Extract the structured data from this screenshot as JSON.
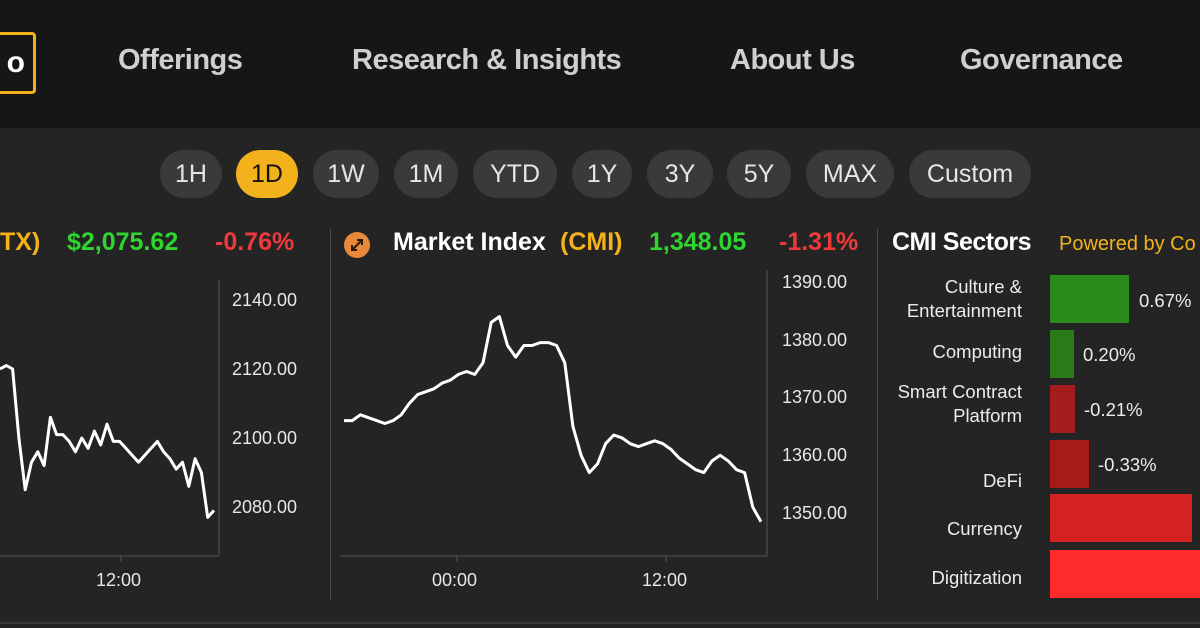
{
  "nav": {
    "logo_fragment": "o",
    "items": [
      "Offerings",
      "Research & Insights",
      "About Us",
      "Governance"
    ]
  },
  "ranges": {
    "items": [
      "1H",
      "1D",
      "1W",
      "1M",
      "YTD",
      "1Y",
      "3Y",
      "5Y",
      "MAX",
      "Custom"
    ],
    "active": "1D"
  },
  "left_chart": {
    "ticker_fragment": "TX)",
    "price": "$2,075.62",
    "change": "-0.76%",
    "y_ticks": [
      "2140.00",
      "2120.00",
      "2100.00",
      "2080.00"
    ],
    "x_ticks": [
      "12:00"
    ]
  },
  "index_chart": {
    "name": "Market Index",
    "ticker": "(CMI)",
    "price": "1,348.05",
    "change": "-1.31%",
    "y_ticks": [
      "1390.00",
      "1380.00",
      "1370.00",
      "1360.00",
      "1350.00"
    ],
    "x_ticks": [
      "00:00",
      "12:00"
    ]
  },
  "sectors": {
    "title": "CMI Sectors",
    "powered_by": "Powered by Co",
    "items": [
      {
        "label": "Culture & Entertainment",
        "value_text": "0.67%",
        "value": 0.67,
        "color": "#2a8a1a"
      },
      {
        "label": "Computing",
        "value_text": "0.20%",
        "value": 0.2,
        "color": "#2a7a18"
      },
      {
        "label": "Smart Contract Platform",
        "value_text": "-0.21%",
        "value": -0.21,
        "color": "#a51c1c"
      },
      {
        "label": "DeFi",
        "value_text": "-0.33%",
        "value": -0.33,
        "color": "#a81a1a"
      },
      {
        "label": "Currency",
        "value_text": "",
        "value": -1.2,
        "color": "#d42222"
      },
      {
        "label": "Digitization",
        "value_text": "",
        "value": -1.3,
        "color": "#ff2a2a"
      }
    ]
  },
  "colors": {
    "accent": "#f3b21b",
    "up": "#2fd62f",
    "down": "#f03a3a"
  },
  "chart_data": [
    {
      "type": "line",
      "title": "",
      "x_ticks": [
        "12:00"
      ],
      "ylim": [
        2070,
        2150
      ],
      "y_ticks": [
        2080,
        2100,
        2120,
        2140
      ],
      "series": [
        {
          "name": "",
          "values": [
            2120,
            2121,
            2120,
            2100,
            2085,
            2093,
            2096,
            2092,
            2106,
            2101,
            2101,
            2099,
            2096,
            2100,
            2097,
            2102,
            2098,
            2104,
            2099,
            2099,
            2097,
            2095,
            2093,
            2095,
            2097,
            2099,
            2096,
            2094,
            2091,
            2093,
            2086,
            2094,
            2090,
            2077,
            2079
          ]
        }
      ]
    },
    {
      "type": "line",
      "title": "Market Index (CMI)",
      "x_ticks": [
        "00:00",
        "12:00"
      ],
      "ylim": [
        1343,
        1393
      ],
      "y_ticks": [
        1350,
        1360,
        1370,
        1380,
        1390
      ],
      "series": [
        {
          "name": "",
          "values": [
            1366,
            1366,
            1367,
            1366.5,
            1366,
            1365.5,
            1366,
            1367,
            1369,
            1370.5,
            1371,
            1371.5,
            1372.5,
            1373,
            1374,
            1374.5,
            1374,
            1376,
            1383,
            1384,
            1379,
            1377,
            1379,
            1379,
            1379.5,
            1379.5,
            1379,
            1376,
            1365,
            1360,
            1357,
            1358.5,
            1362,
            1363.5,
            1363,
            1362,
            1361.5,
            1362,
            1362.5,
            1362,
            1361,
            1359.5,
            1358.5,
            1357.5,
            1357,
            1359,
            1360,
            1359,
            1357.5,
            1357,
            1351,
            1348.5
          ]
        }
      ]
    },
    {
      "type": "bar",
      "title": "CMI Sectors",
      "categories": [
        "Culture & Entertainment",
        "Computing",
        "Smart Contract Platform",
        "DeFi",
        "Currency",
        "Digitization"
      ],
      "values": [
        0.67,
        0.2,
        -0.21,
        -0.33,
        -1.2,
        -1.3
      ]
    }
  ]
}
